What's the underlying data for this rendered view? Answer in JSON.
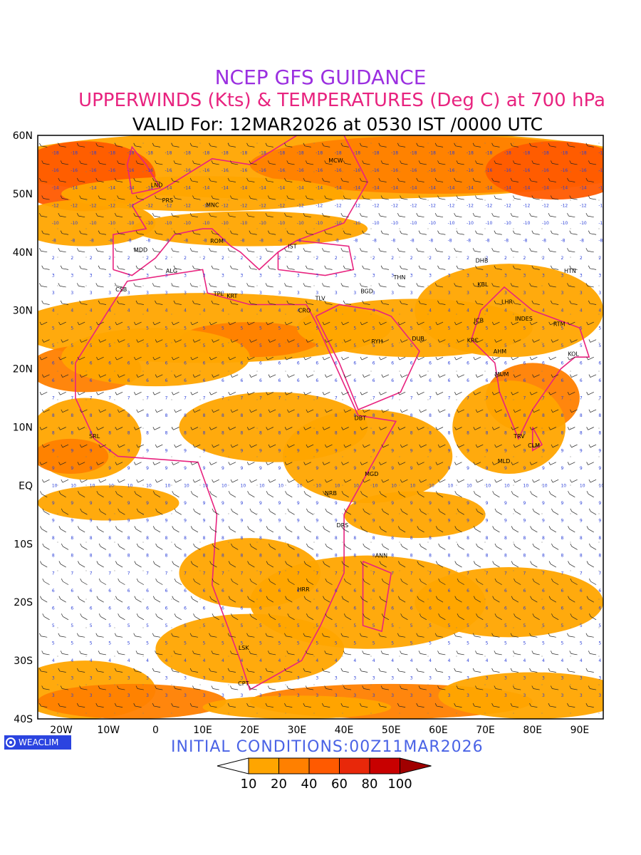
{
  "header": {
    "line1": "NCEP GFS GUIDANCE",
    "line2": "UPPERWINDS (Kts) & TEMPERATURES (Deg C) at 700 hPa",
    "line3": "VALID For: 12MAR2026 at 0530 IST /0000 UTC"
  },
  "axes": {
    "lat_labels": [
      "60N",
      "50N",
      "40N",
      "30N",
      "20N",
      "10N",
      "EQ",
      "10S",
      "20S",
      "30S",
      "40S"
    ],
    "lon_labels": [
      "20W",
      "10W",
      "0",
      "10E",
      "20E",
      "30E",
      "40E",
      "50E",
      "60E",
      "70E",
      "80E",
      "90E"
    ]
  },
  "stations": [
    {
      "code": "MCW",
      "lon": 37.6,
      "lat": 55.7
    },
    {
      "code": "LND",
      "lon": -0.1,
      "lat": 51.5
    },
    {
      "code": "PRS",
      "lon": 2.3,
      "lat": 48.9
    },
    {
      "code": "MNC",
      "lon": 11.6,
      "lat": 48.1
    },
    {
      "code": "ROM",
      "lon": 12.5,
      "lat": 41.9
    },
    {
      "code": "MDD",
      "lon": -3.7,
      "lat": 40.4
    },
    {
      "code": "IST",
      "lon": 29.0,
      "lat": 41.0
    },
    {
      "code": "ALG",
      "lon": 3.1,
      "lat": 36.8
    },
    {
      "code": "CSB",
      "lon": -7.6,
      "lat": 33.6
    },
    {
      "code": "TPL",
      "lon": 13.2,
      "lat": 32.9
    },
    {
      "code": "KRT",
      "lon": 16.0,
      "lat": 32.5
    },
    {
      "code": "TLV",
      "lon": 34.8,
      "lat": 32.1
    },
    {
      "code": "CRO",
      "lon": 31.2,
      "lat": 30.0
    },
    {
      "code": "BGD",
      "lon": 44.4,
      "lat": 33.3
    },
    {
      "code": "THN",
      "lon": 51.4,
      "lat": 35.7
    },
    {
      "code": "DHB",
      "lon": 68.8,
      "lat": 38.6
    },
    {
      "code": "HTN",
      "lon": 87.6,
      "lat": 36.8
    },
    {
      "code": "KBL",
      "lon": 69.2,
      "lat": 34.5
    },
    {
      "code": "LHR",
      "lon": 74.3,
      "lat": 31.5
    },
    {
      "code": "JCB",
      "lon": 68.5,
      "lat": 28.3
    },
    {
      "code": "INDES",
      "lon": 77.2,
      "lat": 28.6
    },
    {
      "code": "RTM",
      "lon": 85.3,
      "lat": 27.7
    },
    {
      "code": "RYH",
      "lon": 46.7,
      "lat": 24.7
    },
    {
      "code": "DUB",
      "lon": 55.3,
      "lat": 25.2
    },
    {
      "code": "KRC",
      "lon": 67.0,
      "lat": 24.9
    },
    {
      "code": "AHM",
      "lon": 72.6,
      "lat": 23.0
    },
    {
      "code": "KOL",
      "lon": 88.4,
      "lat": 22.6
    },
    {
      "code": "MUM",
      "lon": 72.9,
      "lat": 19.1
    },
    {
      "code": "DBT",
      "lon": 43.1,
      "lat": 11.6
    },
    {
      "code": "SRL",
      "lon": -13.2,
      "lat": 8.5
    },
    {
      "code": "TRV",
      "lon": 76.9,
      "lat": 8.5
    },
    {
      "code": "CLM",
      "lon": 79.9,
      "lat": 6.9
    },
    {
      "code": "MGD",
      "lon": 45.3,
      "lat": 2.0
    },
    {
      "code": "MLD",
      "lon": 73.5,
      "lat": 4.2
    },
    {
      "code": "NRB",
      "lon": 36.8,
      "lat": -1.3
    },
    {
      "code": "DRS",
      "lon": 39.3,
      "lat": -6.8
    },
    {
      "code": "ANN",
      "lon": 47.5,
      "lat": -12.0
    },
    {
      "code": "HRR",
      "lon": 31.0,
      "lat": -17.8
    },
    {
      "code": "LSK",
      "lon": 18.5,
      "lat": -27.8
    },
    {
      "code": "CPT",
      "lon": 18.4,
      "lat": -33.9
    }
  ],
  "logo": {
    "text": "WEACLIM"
  },
  "footer": {
    "initial": "INITIAL CONDITIONS:00Z11MAR2026"
  },
  "colorbar": {
    "levels": [
      "10",
      "20",
      "40",
      "60",
      "80",
      "100"
    ],
    "colors": [
      "#ffffff",
      "#ffa500",
      "#ff8000",
      "#ff5a00",
      "#e8280a",
      "#c80000",
      "#a00000"
    ]
  },
  "colors": {
    "wind_10_20": "#ffa500",
    "wind_20_40": "#ff8000",
    "wind_40_60": "#ff5a00",
    "boundaries": "#e8237f",
    "temperature_labels": "#2a3fd8"
  }
}
